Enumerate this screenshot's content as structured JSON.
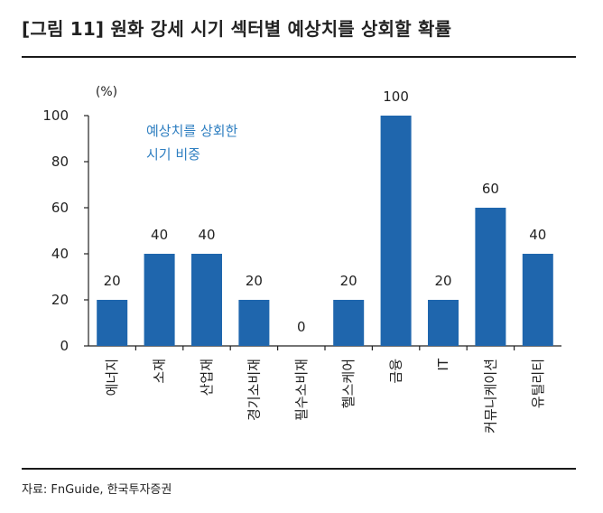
{
  "figure": {
    "title": "[그림 11] 원화 강세 시기 섹터별 예상치를 상회할 확률",
    "source": "자료: FnGuide, 한국투자증권"
  },
  "chart_data": {
    "type": "bar",
    "unit": "(%)",
    "legend_lines": [
      "예상치를 상회한",
      "시기 비중"
    ],
    "categories": [
      "에너지",
      "소재",
      "산업재",
      "경기소비재",
      "필수소비재",
      "헬스케어",
      "금융",
      "IT",
      "커뮤니케이션",
      "유틸리티"
    ],
    "values": [
      20,
      40,
      40,
      20,
      0,
      20,
      100,
      20,
      60,
      40
    ],
    "data_labels": [
      "20",
      "40",
      "40",
      "20",
      "0",
      "20",
      "100",
      "20",
      "60",
      "40"
    ],
    "ylim": [
      0,
      100
    ],
    "yticks": [
      "0",
      "20",
      "40",
      "60",
      "80",
      "100"
    ],
    "grid": false,
    "legend_position": "top-left",
    "colors": {
      "bar": "#1f66ad",
      "legend_text": "#2f7fc1"
    }
  }
}
